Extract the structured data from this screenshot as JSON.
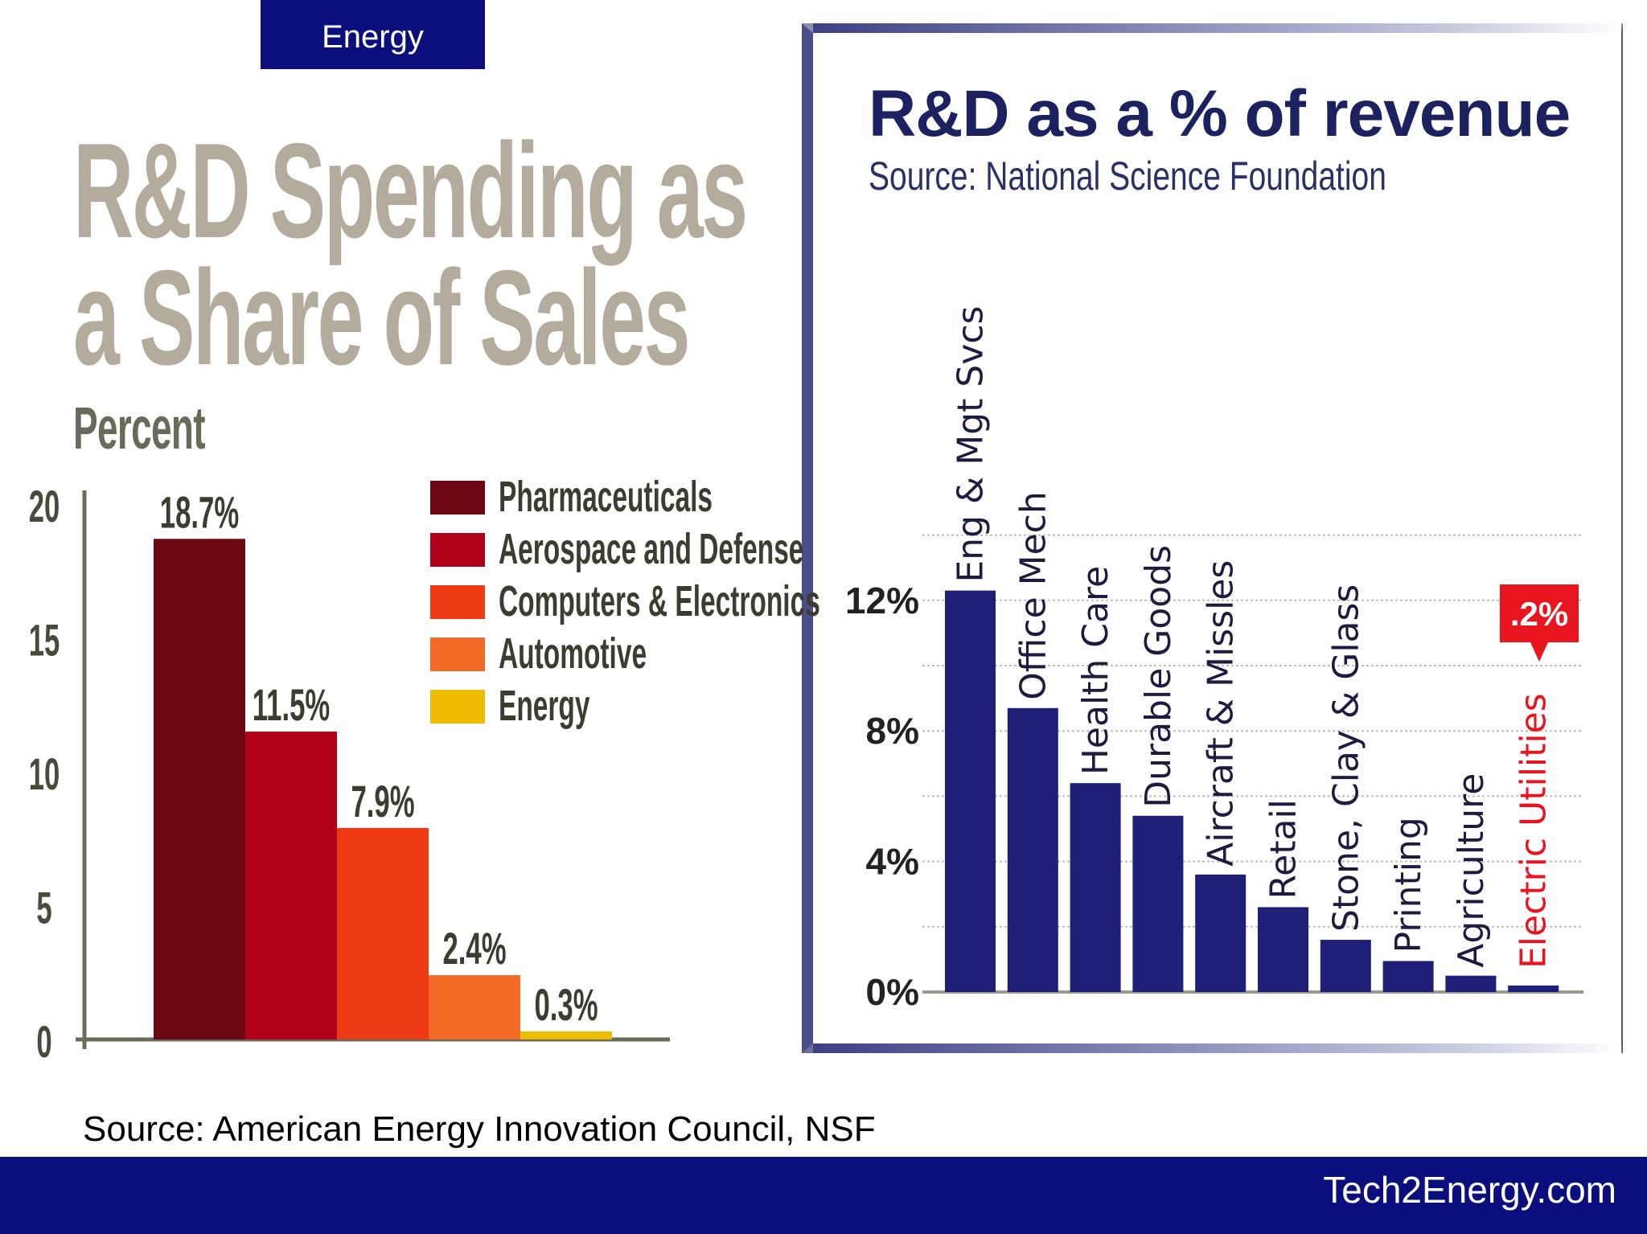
{
  "header": {
    "tab_label": "Energy"
  },
  "left_panel": {
    "title_line1": "R&D Spending as",
    "title_line2": "a Share of Sales",
    "unit_label": "Percent"
  },
  "right_panel": {
    "title": "R&D as a % of revenue",
    "subtitle": "Source: National Science Foundation",
    "callout": ".2%"
  },
  "footer": {
    "source": "Source: American Energy Innovation Council, NSF",
    "site": "Tech2Energy.com"
  },
  "chart_data": [
    {
      "type": "bar",
      "title": "R&D Spending as a Share of Sales",
      "ylabel": "Percent",
      "categories": [
        "Pharmaceuticals",
        "Aerospace and Defense",
        "Computers & Electronics",
        "Automotive",
        "Energy"
      ],
      "values": [
        18.7,
        11.5,
        7.9,
        2.4,
        0.3
      ],
      "data_labels": [
        "18.7%",
        "11.5%",
        "7.9%",
        "2.4%",
        "0.3%"
      ],
      "colors": [
        "#6b0710",
        "#b0001a",
        "#ee3a14",
        "#f46a24",
        "#eebc00"
      ],
      "ylim": [
        0,
        20
      ],
      "yticks": [
        "0",
        "5",
        "10",
        "15",
        "20"
      ],
      "ytick_values": [
        0,
        5,
        10,
        15,
        20
      ],
      "legend": "top-right",
      "grid": false
    },
    {
      "type": "bar",
      "title": "R&D as a % of revenue",
      "subtitle": "Source: National Science Foundation",
      "categories": [
        "Eng & Mgt Svcs",
        "Office Mech",
        "Health Care",
        "Durable Goods",
        "Aircraft & Missles",
        "Retail",
        "Stone, Clay & Glass",
        "Printing",
        "Agriculture",
        "Electric Utilities"
      ],
      "values": [
        12.3,
        8.7,
        6.4,
        5.4,
        3.6,
        2.6,
        1.6,
        0.95,
        0.5,
        0.2
      ],
      "bar_color": "#1f1f78",
      "highlight": {
        "category": "Electric Utilities",
        "color": "#e8141e",
        "label": ".2%"
      },
      "ylim": [
        0,
        14
      ],
      "yticks": [
        "0%",
        "4%",
        "8%",
        "12%"
      ],
      "ytick_values": [
        0,
        4,
        8,
        12
      ],
      "grid": true,
      "grid_step": 2
    }
  ]
}
